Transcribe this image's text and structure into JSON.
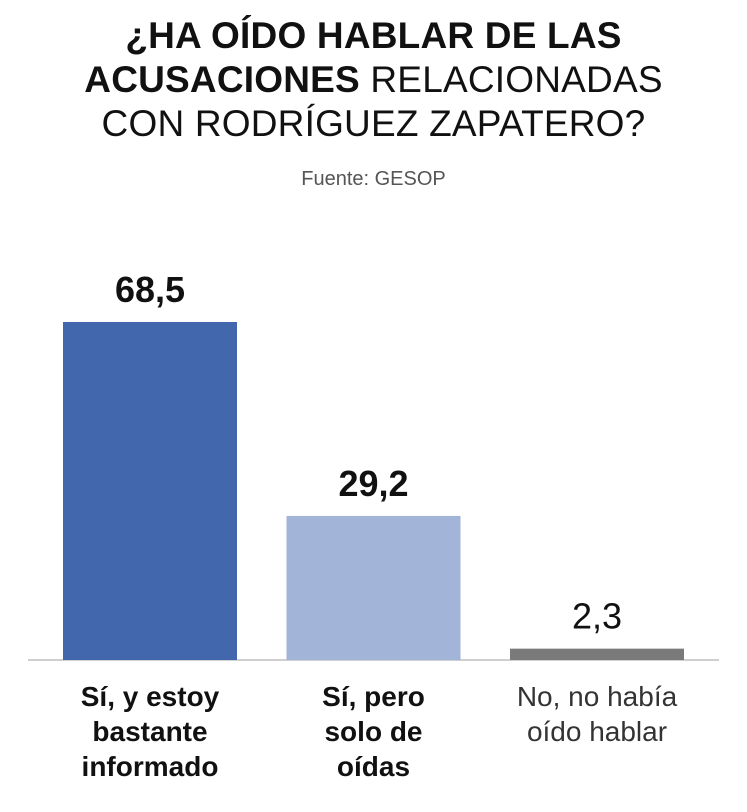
{
  "title": {
    "line1": "¿HA OÍDO HABLAR DE LAS",
    "line2_bold": "ACUSACIONES",
    "line2_rest": "RELACIONADAS",
    "line3": "CON RODRÍGUEZ ZAPATERO?"
  },
  "source": "Fuente: GESOP",
  "chart_data": {
    "type": "bar",
    "categories": [
      [
        "Sí, y estoy",
        "bastante",
        "informado"
      ],
      [
        "Sí, pero",
        "solo de",
        "oídas"
      ],
      [
        "No, no había",
        "oído hablar"
      ]
    ],
    "values": [
      68.5,
      29.2,
      2.3
    ],
    "value_labels": [
      "68,5",
      "29,2",
      "2,3"
    ],
    "colors": [
      "#4267ad",
      "#a2b5d8",
      "#7a7a7a"
    ],
    "label_weights": [
      "bold",
      "bold",
      "normal"
    ],
    "ylim": [
      0,
      68.5
    ],
    "grid": false,
    "legend": "none"
  }
}
